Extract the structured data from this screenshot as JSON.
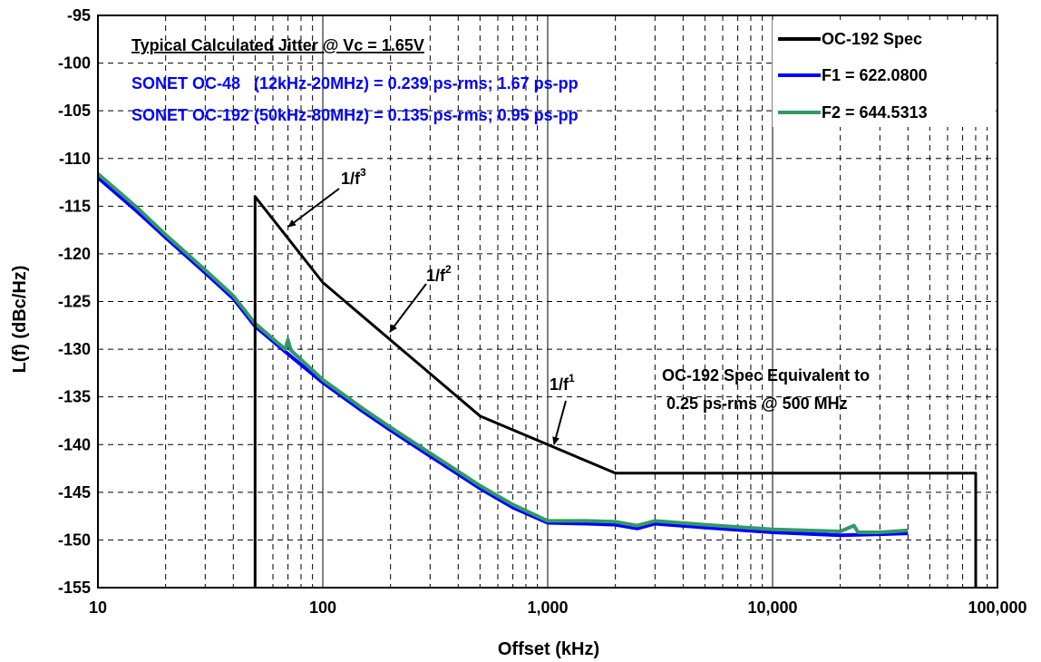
{
  "chart_data": {
    "type": "line",
    "xlabel": "Offset (kHz)",
    "ylabel": "L(f) (dBc/Hz)",
    "xscale": "log",
    "xlim": [
      10,
      100000
    ],
    "ylim": [
      -155,
      -95
    ],
    "grid": true,
    "legend_position": "top-right",
    "x_ticks": [
      "10",
      "100",
      "1,000",
      "10,000",
      "100,000"
    ],
    "y_ticks": [
      "-95",
      "-100",
      "-105",
      "-110",
      "-115",
      "-120",
      "-125",
      "-130",
      "-135",
      "-140",
      "-145",
      "-150",
      "-155"
    ],
    "series": [
      {
        "name": "OC-192 Spec",
        "color": "#000000",
        "points": [
          [
            50,
            -155
          ],
          [
            50,
            -114
          ],
          [
            100,
            -123
          ],
          [
            500,
            -137
          ],
          [
            1000,
            -140
          ],
          [
            2000,
            -143
          ],
          [
            80000,
            -143
          ],
          [
            80000,
            -155
          ]
        ]
      },
      {
        "name": "F1 = 622.0800",
        "color": "#0000ff",
        "points": [
          [
            10,
            -112
          ],
          [
            15,
            -115.6
          ],
          [
            20,
            -118.3
          ],
          [
            30,
            -122
          ],
          [
            40,
            -124.7
          ],
          [
            50,
            -127.6
          ],
          [
            70,
            -130.5
          ],
          [
            100,
            -133.5
          ],
          [
            150,
            -136.5
          ],
          [
            200,
            -138.5
          ],
          [
            300,
            -141.2
          ],
          [
            500,
            -144.6
          ],
          [
            700,
            -146.6
          ],
          [
            1000,
            -148.2
          ],
          [
            1500,
            -148.3
          ],
          [
            2000,
            -148.4
          ],
          [
            2500,
            -148.8
          ],
          [
            3000,
            -148.3
          ],
          [
            5000,
            -148.7
          ],
          [
            10000,
            -149.2
          ],
          [
            20000,
            -149.5
          ],
          [
            30000,
            -149.4
          ],
          [
            40000,
            -149.3
          ]
        ]
      },
      {
        "name": "F2 = 644.5313",
        "color": "#339966",
        "points": [
          [
            10,
            -111.6
          ],
          [
            15,
            -115.2
          ],
          [
            20,
            -118
          ],
          [
            30,
            -121.7
          ],
          [
            40,
            -124.4
          ],
          [
            50,
            -127.3
          ],
          [
            68,
            -130
          ],
          [
            70,
            -129
          ],
          [
            72,
            -130.1
          ],
          [
            100,
            -133.2
          ],
          [
            150,
            -136.2
          ],
          [
            200,
            -138.2
          ],
          [
            300,
            -140.9
          ],
          [
            500,
            -144.3
          ],
          [
            700,
            -146.3
          ],
          [
            1000,
            -148
          ],
          [
            1500,
            -148
          ],
          [
            2000,
            -148.1
          ],
          [
            2500,
            -148.5
          ],
          [
            3000,
            -148
          ],
          [
            5000,
            -148.4
          ],
          [
            10000,
            -148.9
          ],
          [
            20000,
            -149.1
          ],
          [
            23000,
            -148.5
          ],
          [
            24000,
            -149.2
          ],
          [
            30000,
            -149.2
          ],
          [
            40000,
            -149
          ]
        ]
      }
    ],
    "annotations": {
      "jitter_title": "Typical Calculated Jitter @ Vc = 1.65V",
      "jitter_line1": "SONET OC-48   (12kHz-20MHz) = 0.239 ps-rms; 1.67 ps-pp",
      "jitter_line2": "SONET OC-192 (50kHz-80MHz) = 0.135 ps-rms; 0.95 ps-pp",
      "slope3_base": "1/f",
      "slope3_exp": "3",
      "slope2_base": "1/f",
      "slope2_exp": "2",
      "slope1_base": "1/f",
      "slope1_exp": "1",
      "spec_note_line1": "OC-192 Spec Equivalent to",
      "spec_note_line2": " 0.25 ps-rms @ 500 MHz"
    },
    "colors": {
      "jitter_text": "#0000ff",
      "grid_major": "#000000",
      "grid_minor": "#000000"
    }
  }
}
